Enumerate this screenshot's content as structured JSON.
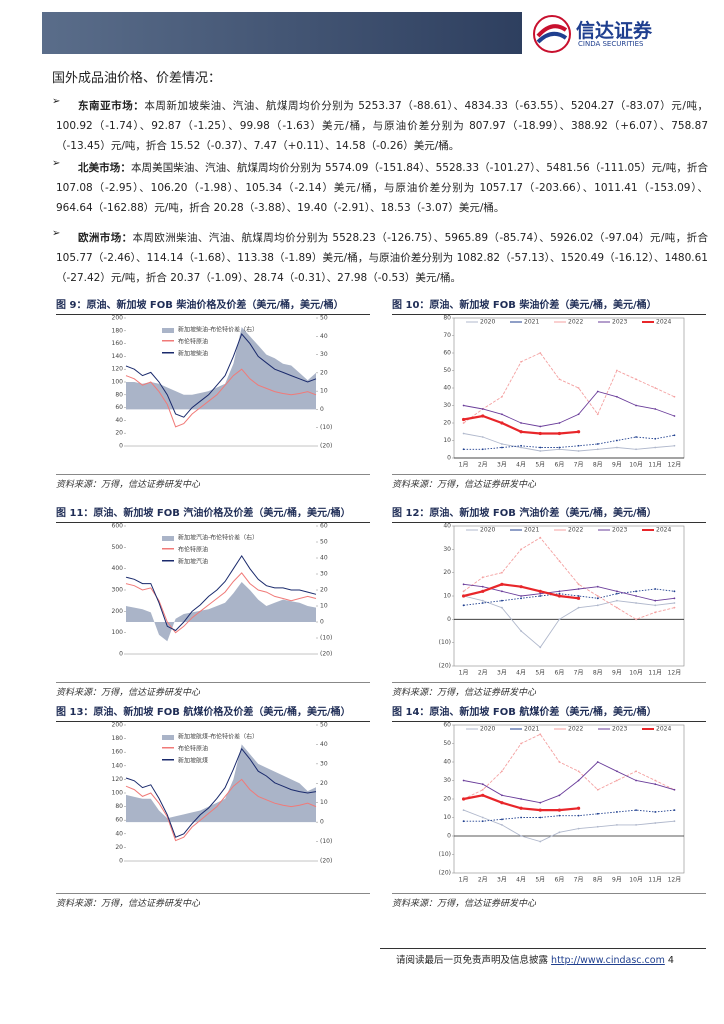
{
  "header": {
    "logo_cn": "信达证券",
    "logo_en": "CINDA SECURITIES"
  },
  "section_title": "国外成品油价格、价差情况：",
  "bullets": [
    {
      "label": "东南亚市场：",
      "text": "本周新加坡柴油、汽油、航煤周均价分别为 5253.37（-88.61）、4834.33（-63.55）、5204.27（-83.07）元/吨，100.92（-1.74）、92.87（-1.25）、99.98（-1.63）美元/桶，与原油价差分别为 807.97（-18.99）、388.92（+6.07）、758.87（-13.45）元/吨，折合 15.52（-0.37）、7.47（+0.11）、14.58（-0.26）美元/桶。"
    },
    {
      "label": "北美市场：",
      "text": "本周美国柴油、汽油、航煤周均价分别为 5574.09（-151.84）、5528.33（-101.27）、5481.56（-111.05）元/吨，折合 107.08（-2.95）、106.20（-1.98）、105.34（-2.14）美元/桶，与原油价差分别为 1057.17（-203.66）、1011.41（-153.09）、964.64（-162.88）元/吨，折合 20.28（-3.88）、19.40（-2.91）、18.53（-3.07）美元/桶。"
    },
    {
      "label": "欧洲市场：",
      "text": "本周欧洲柴油、汽油、航煤周均价分别为 5528.23（-126.75）、5965.89（-85.74）、5926.02（-97.04）元/吨，折合 105.77（-2.46）、114.14（-1.68）、113.38（-1.89）美元/桶，与原油价差分别为 1082.82（-57.13）、1520.49（-16.12）、1480.61（-27.42）元/吨，折合 20.37（-1.09）、28.74（-0.31）、27.98（-0.53）美元/桶。"
    }
  ],
  "figures": [
    {
      "caption": "图 9：原油、新加坡 FOB 柴油价格及价差（美元/桶，美元/桶）",
      "source": "资料来源：万得，信达证券研发中心",
      "chart_data": {
        "type": "combo",
        "ylim": [
          0,
          200
        ],
        "yticks": [
          0,
          20,
          40,
          60,
          80,
          100,
          120,
          140,
          160,
          180,
          200
        ],
        "y2lim": [
          -20,
          50
        ],
        "y2ticks": [
          {
            "value": -20,
            "label": "(20)"
          },
          {
            "value": -10,
            "label": "(10)"
          },
          0,
          10,
          20,
          30,
          40,
          50
        ],
        "series": [
          {
            "name": "新加坡柴油-布伦特价差（右）",
            "color": "#aab4c8",
            "axis": "y2",
            "kind": "area",
            "values": [
              15,
              15,
              14,
              15,
              14,
              12,
              10,
              8,
              8,
              9,
              10,
              12,
              14,
              25,
              45,
              40,
              35,
              30,
              28,
              25,
              24,
              20,
              16,
              20
            ]
          },
          {
            "name": "布伦特原油",
            "color": "#f07a78",
            "kind": "line",
            "values": [
              110,
              105,
              95,
              100,
              85,
              65,
              30,
              35,
              50,
              60,
              70,
              80,
              95,
              110,
              120,
              105,
              95,
              90,
              85,
              82,
              80,
              82,
              85,
              80
            ]
          },
          {
            "name": "新加坡柴油",
            "color": "#1a2a6c",
            "kind": "line",
            "values": [
              125,
              120,
              110,
              115,
              100,
              80,
              50,
              45,
              60,
              70,
              80,
              95,
              110,
              140,
              175,
              160,
              140,
              130,
              120,
              115,
              110,
              105,
              100,
              105
            ]
          }
        ]
      }
    },
    {
      "caption": "图 10：原油、新加坡 FOB 柴油价差（美元/桶，美元/桶）",
      "source": "资料来源：万得，信达证券研发中心",
      "chart_data": {
        "type": "season",
        "categories": [
          "1月",
          "2月",
          "3月",
          "4月",
          "5月",
          "6月",
          "7月",
          "8月",
          "9月",
          "10月",
          "11月",
          "12月"
        ],
        "ylim": [
          0,
          80
        ],
        "yticks": [
          0,
          10,
          20,
          30,
          40,
          50,
          60,
          70,
          80
        ],
        "series": [
          {
            "name": "2020",
            "color": "#b0b8cc",
            "values": [
              14,
              12,
              8,
              6,
              4,
              5,
              4,
              5,
              6,
              5,
              6,
              7
            ]
          },
          {
            "name": "2021",
            "color": "#1f3f8f",
            "values": [
              5,
              5,
              6,
              7,
              6,
              6,
              7,
              8,
              10,
              12,
              11,
              13
            ]
          },
          {
            "name": "2022",
            "color": "#f4a0a0",
            "values": [
              20,
              28,
              35,
              55,
              60,
              45,
              40,
              25,
              50,
              45,
              40,
              35
            ]
          },
          {
            "name": "2023",
            "color": "#6a3d9a",
            "values": [
              30,
              28,
              25,
              20,
              18,
              20,
              25,
              38,
              35,
              30,
              28,
              24
            ]
          },
          {
            "name": "2024",
            "color": "#e8262a",
            "values": [
              22,
              24,
              20,
              15,
              14,
              14,
              15,
              null,
              null,
              null,
              null,
              null
            ]
          }
        ]
      }
    },
    {
      "caption": "图 11：原油、新加坡 FOB 汽油价格及价差（美元/桶，美元/桶）",
      "source": "资料来源：万得，信达证券研发中心",
      "chart_data": {
        "type": "combo",
        "ylim": [
          0,
          600
        ],
        "yticks": [
          0,
          100,
          200,
          300,
          400,
          500,
          600
        ],
        "y2lim": [
          -20,
          60
        ],
        "y2ticks": [
          {
            "value": -20,
            "label": "(20)"
          },
          {
            "value": -10,
            "label": "(10)"
          },
          0,
          10,
          20,
          30,
          40,
          50,
          60
        ],
        "series": [
          {
            "name": "新加坡汽油-布伦特价差（右）",
            "color": "#aab4c8",
            "axis": "y2",
            "kind": "area",
            "values": [
              10,
              9,
              8,
              6,
              -8,
              -12,
              2,
              5,
              6,
              7,
              8,
              10,
              12,
              18,
              25,
              20,
              14,
              10,
              12,
              14,
              13,
              12,
              10,
              9
            ]
          },
          {
            "name": "布伦特原油",
            "color": "#f07a78",
            "kind": "line",
            "values": [
              330,
              320,
              300,
              310,
              250,
              150,
              100,
              130,
              170,
              200,
              230,
              260,
              290,
              340,
              380,
              330,
              300,
              290,
              270,
              260,
              250,
              260,
              270,
              260
            ]
          },
          {
            "name": "新加坡汽油",
            "color": "#1a2a6c",
            "kind": "line",
            "values": [
              360,
              350,
              330,
              330,
              240,
              130,
              110,
              150,
              200,
              230,
              270,
              300,
              340,
              400,
              460,
              400,
              350,
              320,
              310,
              310,
              300,
              300,
              290,
              280
            ]
          }
        ]
      }
    },
    {
      "caption": "图 12：原油、新加坡 FOB 汽油价差（美元/桶，美元/桶）",
      "source": "资料来源：万得，信达证券研发中心",
      "chart_data": {
        "type": "season",
        "categories": [
          "1月",
          "2月",
          "3月",
          "4月",
          "5月",
          "6月",
          "7月",
          "8月",
          "9月",
          "10月",
          "11月",
          "12月"
        ],
        "ylim": [
          -20,
          40
        ],
        "yticks": [
          {
            "value": -20,
            "label": "(20)"
          },
          {
            "value": -10,
            "label": "(10)"
          },
          0,
          10,
          20,
          30,
          40
        ],
        "series": [
          {
            "name": "2020",
            "color": "#b0b8cc",
            "values": [
              10,
              8,
              5,
              -5,
              -12,
              0,
              5,
              6,
              8,
              7,
              6,
              7
            ]
          },
          {
            "name": "2021",
            "color": "#1f3f8f",
            "values": [
              6,
              7,
              8,
              9,
              10,
              11,
              10,
              9,
              11,
              12,
              13,
              12
            ]
          },
          {
            "name": "2022",
            "color": "#f4a0a0",
            "values": [
              12,
              18,
              20,
              30,
              35,
              25,
              15,
              10,
              5,
              0,
              3,
              5
            ]
          },
          {
            "name": "2023",
            "color": "#6a3d9a",
            "values": [
              15,
              14,
              12,
              10,
              11,
              12,
              13,
              14,
              12,
              10,
              8,
              9
            ]
          },
          {
            "name": "2024",
            "color": "#e8262a",
            "values": [
              10,
              12,
              15,
              14,
              12,
              10,
              9,
              null,
              null,
              null,
              null,
              null
            ]
          }
        ]
      }
    },
    {
      "caption": "图 13：原油、新加坡 FOB 航煤价格及价差（美元/桶，美元/桶）",
      "source": "资料来源：万得，信达证券研发中心",
      "chart_data": {
        "type": "combo",
        "ylim": [
          0,
          200
        ],
        "yticks": [
          0,
          20,
          40,
          60,
          80,
          100,
          120,
          140,
          160,
          180,
          200
        ],
        "y2lim": [
          -20,
          50
        ],
        "y2ticks": [
          {
            "value": -20,
            "label": "(20)"
          },
          {
            "value": -10,
            "label": "(10)"
          },
          0,
          10,
          20,
          30,
          40,
          50
        ],
        "series": [
          {
            "name": "新加坡航煤-布伦特价差（右）",
            "color": "#aab4c8",
            "axis": "y2",
            "kind": "area",
            "values": [
              14,
              13,
              12,
              12,
              6,
              2,
              3,
              4,
              5,
              6,
              8,
              10,
              12,
              22,
              40,
              35,
              30,
              28,
              26,
              24,
              22,
              20,
              16,
              18
            ]
          },
          {
            "name": "布伦特原油",
            "color": "#f07a78",
            "kind": "line",
            "values": [
              110,
              105,
              95,
              100,
              85,
              65,
              30,
              35,
              50,
              60,
              70,
              80,
              95,
              110,
              120,
              105,
              95,
              90,
              85,
              82,
              80,
              82,
              85,
              80
            ]
          },
          {
            "name": "新加坡航煤",
            "color": "#1a2a6c",
            "kind": "line",
            "values": [
              122,
              118,
              108,
              112,
              92,
              68,
              35,
              40,
              55,
              68,
              78,
              92,
              108,
              135,
              165,
              150,
              132,
              125,
              115,
              110,
              105,
              102,
              100,
              102
            ]
          }
        ]
      }
    },
    {
      "caption": "图 14：原油、新加坡 FOB 航煤价差（美元/桶，美元/桶）",
      "source": "资料来源：万得，信达证券研发中心",
      "chart_data": {
        "type": "season",
        "categories": [
          "1月",
          "2月",
          "3月",
          "4月",
          "5月",
          "6月",
          "7月",
          "8月",
          "9月",
          "10月",
          "11月",
          "12月"
        ],
        "ylim": [
          -20,
          60
        ],
        "yticks": [
          {
            "value": -20,
            "label": "(20)"
          },
          {
            "value": -10,
            "label": "(10)"
          },
          0,
          10,
          20,
          30,
          40,
          50,
          60
        ],
        "series": [
          {
            "name": "2020",
            "color": "#b0b8cc",
            "values": [
              14,
              10,
              6,
              0,
              -3,
              2,
              4,
              5,
              6,
              6,
              7,
              8
            ]
          },
          {
            "name": "2021",
            "color": "#1f3f8f",
            "values": [
              8,
              8,
              9,
              10,
              10,
              11,
              11,
              12,
              13,
              14,
              13,
              14
            ]
          },
          {
            "name": "2022",
            "color": "#f4a0a0",
            "values": [
              20,
              25,
              35,
              50,
              55,
              40,
              35,
              25,
              30,
              35,
              30,
              25
            ]
          },
          {
            "name": "2023",
            "color": "#6a3d9a",
            "values": [
              30,
              28,
              22,
              20,
              18,
              22,
              30,
              40,
              35,
              30,
              28,
              25
            ]
          },
          {
            "name": "2024",
            "color": "#e8262a",
            "values": [
              20,
              22,
              18,
              15,
              14,
              14,
              15,
              null,
              null,
              null,
              null,
              null
            ]
          }
        ]
      }
    }
  ],
  "footer": {
    "text": "请阅读最后一页免责声明及信息披露",
    "url": "http://www.cindasc.com",
    "page": "4"
  }
}
